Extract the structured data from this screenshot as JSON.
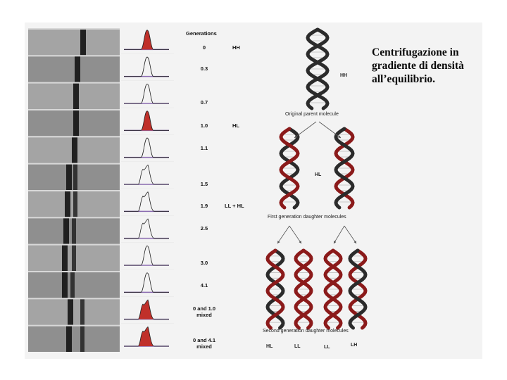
{
  "title": "Centrifugazione in gradiente di densità all’equilibrio.",
  "generations_header": "Generations",
  "rows": [
    {
      "gen": "0",
      "density": "HH",
      "peak": "filled"
    },
    {
      "gen": "0.3",
      "density": "",
      "peak": "single"
    },
    {
      "gen": "0.7",
      "density": "",
      "peak": "single"
    },
    {
      "gen": "1.0",
      "density": "HL",
      "peak": "filled"
    },
    {
      "gen": "1.1",
      "density": "",
      "peak": "single"
    },
    {
      "gen": "1.5",
      "density": "",
      "peak": "double"
    },
    {
      "gen": "1.9",
      "density": "LL + HL",
      "peak": "double"
    },
    {
      "gen": "2.5",
      "density": "",
      "peak": "double"
    },
    {
      "gen": "3.0",
      "density": "",
      "peak": "single"
    },
    {
      "gen": "4.1",
      "density": "",
      "peak": "single"
    },
    {
      "gen": "0 and 1.0 mixed",
      "density": "",
      "peak": "filled-double"
    },
    {
      "gen": "0 and 4.1 mixed",
      "density": "",
      "peak": "filled-double"
    }
  ],
  "dna_diagram": {
    "parent_label": "HH",
    "parent_caption": "Original parent molecule",
    "first_gen_label": "HL",
    "first_gen_caption": "First generation daughter molecules",
    "second_gen_caption": "Second generation daughter molecules",
    "second_gen_labels": [
      "HL",
      "LL",
      "LL",
      "LH"
    ]
  },
  "colors": {
    "heavy_strand": "#2b2b2b",
    "light_strand": "#8b1a1a",
    "peak_fill": "#c0302a"
  }
}
